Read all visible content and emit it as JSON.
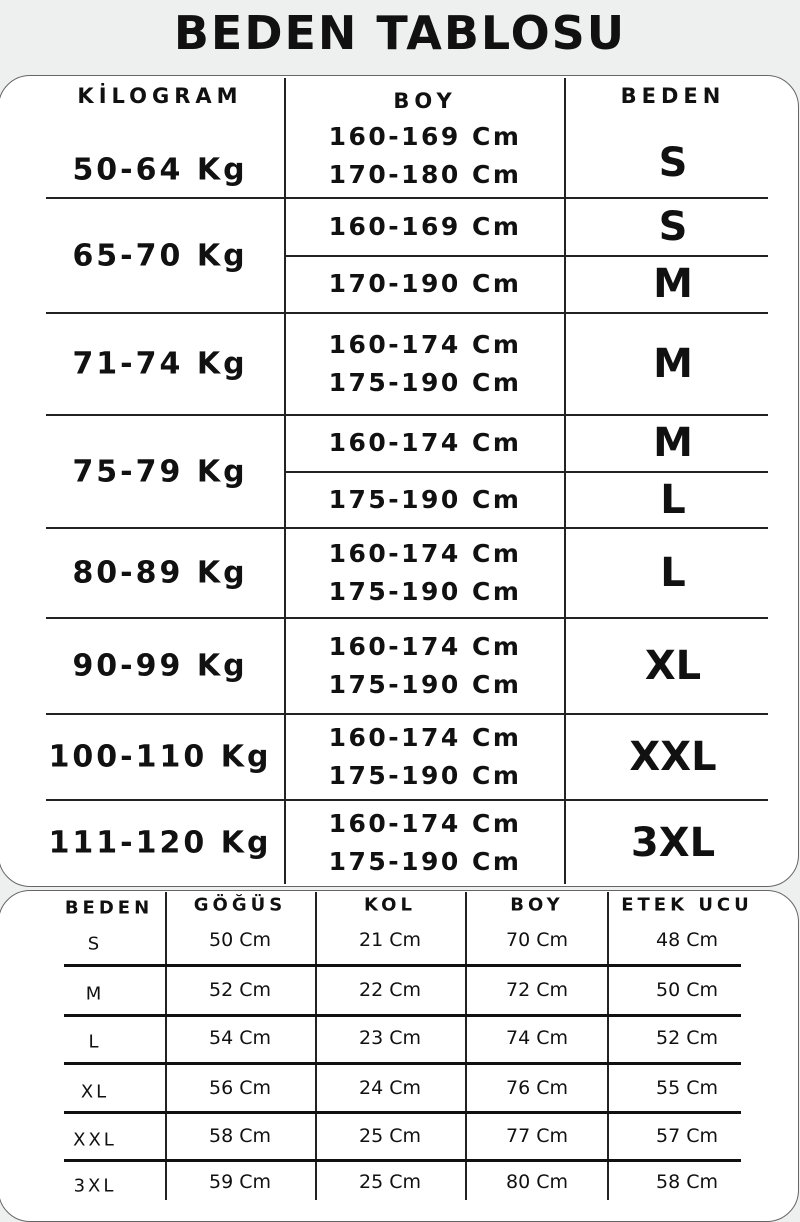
{
  "title": "BEDEN TABLOSU",
  "top_table": {
    "headers": [
      "KİLOGRAM",
      "BOY",
      "BEDEN"
    ],
    "rows": [
      {
        "kg": "50-64 Kg",
        "boy": [
          "160-169 Cm",
          "170-180 Cm"
        ],
        "beden": [
          "S"
        ],
        "split": false
      },
      {
        "kg": "65-70 Kg",
        "boy": [
          "160-169 Cm",
          "170-190 Cm"
        ],
        "beden": [
          "S",
          "M"
        ],
        "split": true
      },
      {
        "kg": "71-74 Kg",
        "boy": [
          "160-174 Cm",
          "175-190 Cm"
        ],
        "beden": [
          "M"
        ],
        "split": false
      },
      {
        "kg": "75-79 Kg",
        "boy": [
          "160-174 Cm",
          "175-190 Cm"
        ],
        "beden": [
          "M",
          "L"
        ],
        "split": true
      },
      {
        "kg": "80-89 Kg",
        "boy": [
          "160-174 Cm",
          "175-190 Cm"
        ],
        "beden": [
          "L"
        ],
        "split": false
      },
      {
        "kg": "90-99 Kg",
        "boy": [
          "160-174 Cm",
          "175-190 Cm"
        ],
        "beden": [
          "XL"
        ],
        "split": false
      },
      {
        "kg": "100-110 Kg",
        "boy": [
          "160-174 Cm",
          "175-190 Cm"
        ],
        "beden": [
          "XXL"
        ],
        "split": false
      },
      {
        "kg": "111-120 Kg",
        "boy": [
          "160-174 Cm",
          "175-190 Cm"
        ],
        "beden": [
          "3XL"
        ],
        "split": false
      }
    ]
  },
  "bottom_table": {
    "headers": [
      "BEDEN",
      "GÖĞÜS",
      "KOL",
      "BOY",
      "ETEK UCU"
    ],
    "rows": [
      [
        "S",
        "50 Cm",
        "21 Cm",
        "70 Cm",
        "48 Cm"
      ],
      [
        "M",
        "52 Cm",
        "22 Cm",
        "72 Cm",
        "50 Cm"
      ],
      [
        "L",
        "54 Cm",
        "23 Cm",
        "74 Cm",
        "52 Cm"
      ],
      [
        "XL",
        "56 Cm",
        "24 Cm",
        "76 Cm",
        "55 Cm"
      ],
      [
        "XXL",
        "58 Cm",
        "25 Cm",
        "77 Cm",
        "57 Cm"
      ],
      [
        "3XL",
        "59 Cm",
        "25 Cm",
        "80 Cm",
        "58 Cm"
      ]
    ]
  }
}
